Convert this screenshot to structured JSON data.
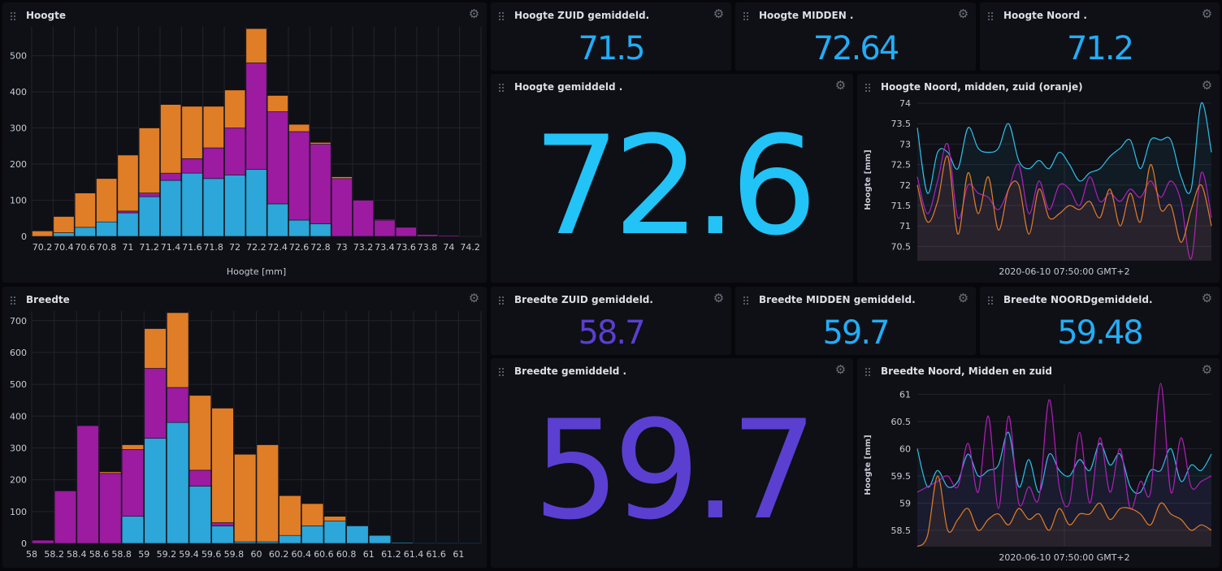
{
  "colors": {
    "cyan": "#22adf6",
    "purple": "#5b3fd1",
    "orange": "#e07d27",
    "magenta": "#9c1ba1",
    "blue": "#2da6d9",
    "grid": "#23232c",
    "axis_text": "#c7cbd4"
  },
  "cells": {
    "hoogte_hist": {
      "title": "Hoogte"
    },
    "hoogte_zuid": {
      "title": "Hoogte ZUID gemiddeld.",
      "value": "71.5"
    },
    "hoogte_midden": {
      "title": "Hoogte MIDDEN .",
      "value": "72.64"
    },
    "hoogte_noord": {
      "title": "Hoogte Noord .",
      "value": "71.2"
    },
    "hoogte_gem": {
      "title": "Hoogte gemiddeld .",
      "value": "72.6"
    },
    "hoogte_line": {
      "title": "Hoogte Noord, midden, zuid (oranje)"
    },
    "breedte_hist": {
      "title": "Breedte"
    },
    "breedte_zuid": {
      "title": "Breedte ZUID gemiddeld.",
      "value": "58.7"
    },
    "breedte_midden": {
      "title": "Breedte MIDDEN gemiddeld.",
      "value": "59.7"
    },
    "breedte_noord": {
      "title": "Breedte NOORDgemiddeld.",
      "value": "59.48"
    },
    "breedte_gem": {
      "title": "Breedte gemiddeld .",
      "value": "59.7"
    },
    "breedte_line": {
      "title": "Breedte Noord, Midden en zuid"
    }
  },
  "chart_data": [
    {
      "id": "hoogte_hist",
      "type": "bar",
      "stacked": true,
      "xlabel": "Hoogte [mm]",
      "ylabel": "",
      "ylim": [
        0,
        580
      ],
      "yticks": [
        0,
        100,
        200,
        300,
        400,
        500
      ],
      "categories": [
        "70.2",
        "70.4",
        "70.6",
        "70.8",
        "71",
        "71.2",
        "71.4",
        "71.6",
        "71.8",
        "72",
        "72.2",
        "72.4",
        "72.6",
        "72.8",
        "73",
        "73.2",
        "73.4",
        "73.6",
        "73.8",
        "74",
        "74.2"
      ],
      "series": [
        {
          "color": "#2da6d9",
          "values": [
            0,
            10,
            25,
            40,
            65,
            110,
            155,
            175,
            160,
            170,
            185,
            90,
            45,
            35,
            0,
            0,
            0,
            0,
            0,
            0,
            0
          ]
        },
        {
          "color": "#9c1ba1",
          "values": [
            0,
            0,
            0,
            0,
            5,
            10,
            20,
            40,
            85,
            130,
            295,
            255,
            245,
            220,
            160,
            100,
            45,
            25,
            5,
            3,
            0
          ]
        },
        {
          "color": "#e07d27",
          "values": [
            15,
            45,
            95,
            120,
            155,
            180,
            190,
            145,
            115,
            105,
            95,
            45,
            20,
            5,
            5,
            0,
            2,
            0,
            0,
            0,
            0
          ]
        }
      ]
    },
    {
      "id": "breedte_hist",
      "type": "bar",
      "stacked": true,
      "xlabel": "",
      "ylabel": "",
      "ylim": [
        0,
        730
      ],
      "yticks": [
        0,
        100,
        200,
        300,
        400,
        500,
        600,
        700
      ],
      "categories": [
        "58",
        "58.2",
        "58.4",
        "58.6",
        "58.8",
        "59",
        "59.2",
        "59.4",
        "59.6",
        "59.8",
        "60",
        "60.2",
        "60.4",
        "60.6",
        "60.8",
        "61",
        "61.2",
        "61.4",
        "61.6",
        "61"
      ],
      "series": [
        {
          "color": "#2da6d9",
          "values": [
            0,
            0,
            0,
            0,
            85,
            330,
            380,
            180,
            55,
            5,
            5,
            25,
            55,
            70,
            55,
            25,
            3,
            2,
            2,
            2
          ]
        },
        {
          "color": "#9c1ba1",
          "values": [
            10,
            165,
            370,
            220,
            210,
            220,
            110,
            50,
            10,
            0,
            0,
            0,
            0,
            0,
            0,
            0,
            0,
            0,
            0,
            0
          ]
        },
        {
          "color": "#e07d27",
          "values": [
            0,
            0,
            0,
            5,
            15,
            125,
            235,
            235,
            360,
            275,
            305,
            125,
            70,
            15,
            0,
            0,
            0,
            0,
            0,
            0
          ]
        }
      ]
    },
    {
      "id": "hoogte_line",
      "type": "line",
      "title": "Hoogte Noord, midden, zuid (oranje)",
      "xlabel": "2020-06-10 07:50:00 GMT+2",
      "ylabel": "Hoogte [mm]",
      "ylim": [
        70.15,
        74.1
      ],
      "yticks": [
        70.5,
        71,
        71.5,
        72,
        72.5,
        73,
        73.5,
        74
      ],
      "series": [
        {
          "color": "#2fc0e8",
          "values": [
            73.4,
            71.8,
            72.8,
            72.8,
            72.4,
            73.4,
            72.9,
            72.8,
            72.9,
            73.5,
            72.6,
            72.4,
            72.6,
            72.4,
            72.8,
            72.5,
            72.1,
            72.3,
            72.4,
            72.7,
            72.9,
            73.1,
            72.4,
            73.1,
            73.1,
            73.1,
            72.2,
            71.9,
            74.0,
            72.8
          ]
        },
        {
          "color": "#b020b8",
          "values": [
            72.2,
            71.3,
            72.1,
            73.0,
            71.2,
            72.0,
            71.8,
            71.7,
            71.4,
            71.9,
            72.5,
            71.3,
            72.1,
            71.4,
            72.0,
            71.9,
            71.5,
            72.2,
            71.6,
            71.8,
            71.6,
            71.9,
            71.7,
            72.1,
            71.7,
            72.1,
            71.6,
            70.2,
            72.3,
            71.2
          ]
        },
        {
          "color": "#e07d27",
          "values": [
            72.0,
            71.1,
            71.6,
            72.7,
            70.8,
            72.3,
            71.3,
            72.2,
            70.9,
            71.9,
            72.0,
            70.8,
            71.9,
            71.2,
            71.3,
            71.5,
            71.4,
            71.6,
            71.2,
            71.9,
            71.0,
            71.8,
            71.1,
            72.5,
            71.4,
            71.5,
            70.6,
            71.4,
            72.0,
            71.0
          ]
        }
      ]
    },
    {
      "id": "breedte_line",
      "type": "line",
      "title": "Breedte Noord, Midden en zuid",
      "xlabel": "2020-06-10 07:50:00 GMT+2",
      "ylabel": "Hoogte [mm]",
      "ylim": [
        58.2,
        61.2
      ],
      "yticks": [
        58.5,
        59,
        59.5,
        60,
        60.5,
        61
      ],
      "series": [
        {
          "color": "#2fc0e8",
          "values": [
            60.0,
            59.3,
            59.6,
            59.3,
            59.4,
            59.9,
            59.5,
            59.6,
            59.7,
            60.3,
            59.3,
            59.8,
            59.2,
            59.9,
            59.6,
            59.5,
            59.8,
            59.6,
            60.1,
            59.7,
            59.9,
            59.3,
            59.2,
            59.6,
            59.6,
            60.0,
            59.4,
            59.7,
            59.6,
            59.9
          ]
        },
        {
          "color": "#b020b8",
          "values": [
            59.2,
            59.3,
            59.4,
            59.5,
            59.3,
            60.1,
            59.2,
            60.6,
            58.9,
            60.6,
            59.0,
            59.3,
            59.1,
            60.9,
            59.3,
            59.0,
            60.3,
            59.0,
            60.2,
            59.2,
            60.0,
            58.9,
            59.4,
            59.2,
            61.2,
            59.2,
            60.2,
            59.3,
            59.4,
            59.5
          ]
        },
        {
          "color": "#e07d27",
          "values": [
            58.2,
            58.4,
            59.5,
            58.5,
            58.7,
            58.9,
            58.5,
            58.7,
            58.8,
            58.6,
            58.9,
            58.7,
            58.8,
            58.5,
            58.9,
            58.6,
            58.8,
            58.8,
            59.0,
            58.7,
            58.9,
            58.9,
            58.8,
            58.6,
            59.0,
            58.8,
            58.7,
            58.5,
            58.6,
            58.5
          ]
        }
      ]
    }
  ]
}
